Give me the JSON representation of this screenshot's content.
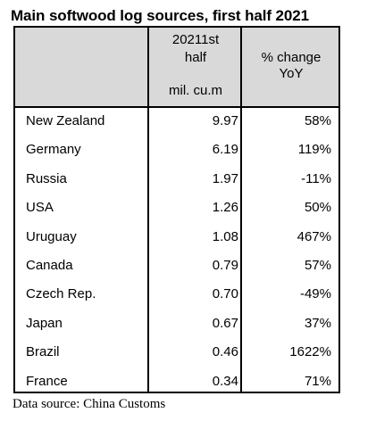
{
  "title": "Main softwood log sources, first half 2021",
  "header": {
    "volume_line1": "20211st",
    "volume_line2": "half",
    "volume_unit": "mil. cu.m",
    "change_line1": "% change",
    "change_line2": "YoY"
  },
  "rows": [
    {
      "country": "New Zealand",
      "volume": "9.97",
      "change": "58%"
    },
    {
      "country": "Germany",
      "volume": "6.19",
      "change": "119%"
    },
    {
      "country": "Russia",
      "volume": "1.97",
      "change": "-11%"
    },
    {
      "country": "USA",
      "volume": "1.26",
      "change": "50%"
    },
    {
      "country": "Uruguay",
      "volume": "1.08",
      "change": "467%"
    },
    {
      "country": "Canada",
      "volume": "0.79",
      "change": "57%"
    },
    {
      "country": "Czech Rep.",
      "volume": "0.70",
      "change": "-49%"
    },
    {
      "country": "Japan",
      "volume": "0.67",
      "change": "37%"
    },
    {
      "country": "Brazil",
      "volume": "0.46",
      "change": "1622%"
    },
    {
      "country": "France",
      "volume": "0.34",
      "change": "71%"
    }
  ],
  "footer": "Data source: China Customs"
}
